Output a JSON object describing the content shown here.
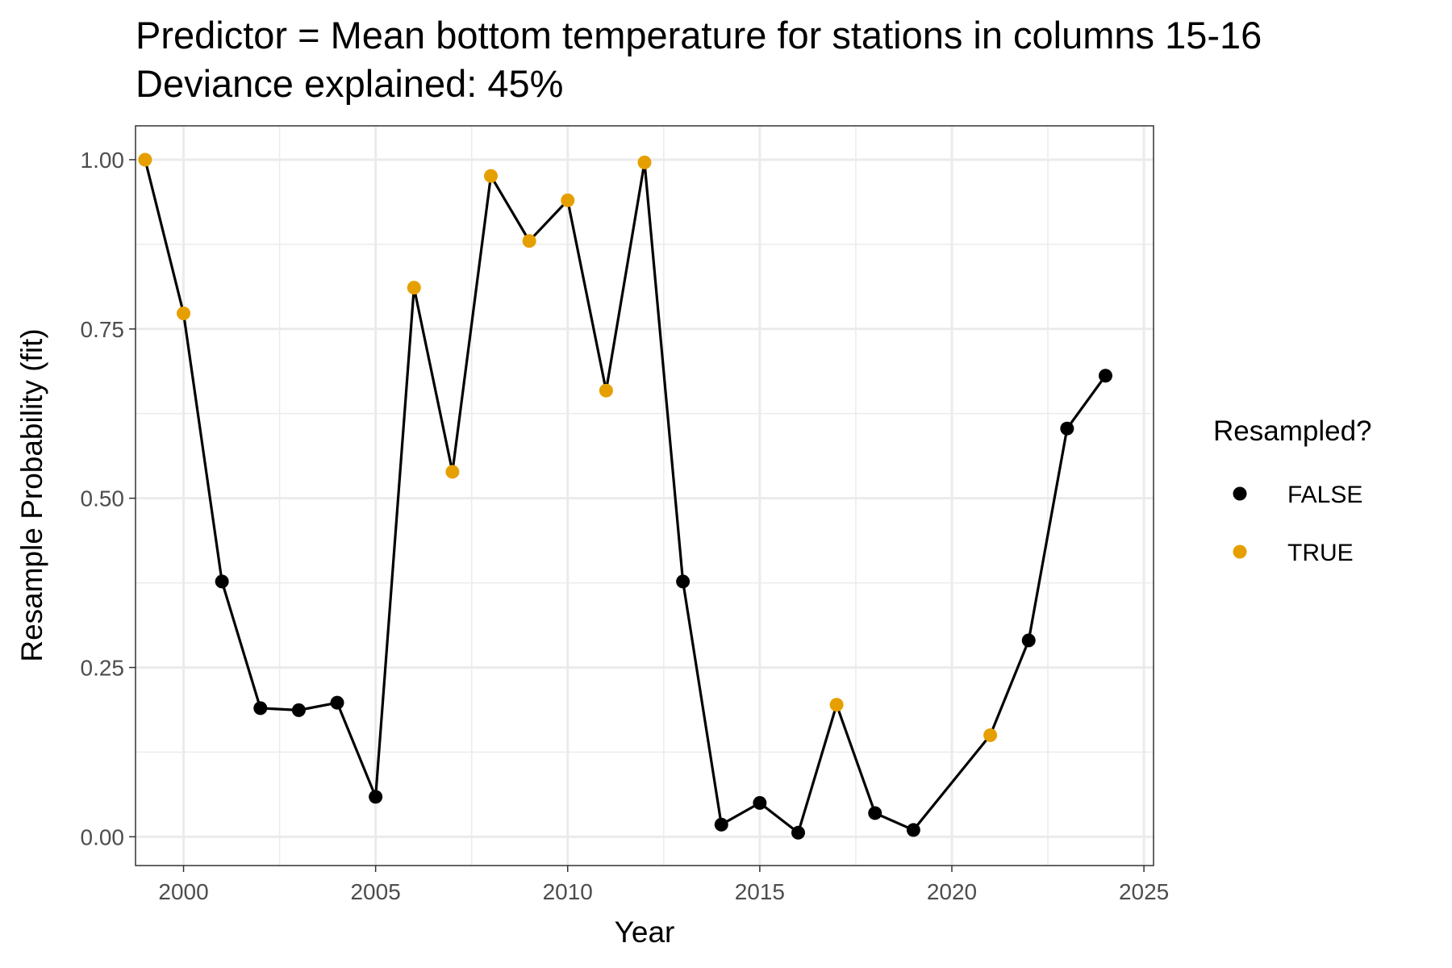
{
  "chart_data": {
    "type": "line",
    "title_line1": "Predictor = Mean bottom temperature for stations in columns 15-16",
    "title_line2": "Deviance explained: 45%",
    "xlabel": "Year",
    "ylabel": "Resample Probability (fit)",
    "xlim": [
      1998.75,
      2025.25
    ],
    "ylim": [
      -0.0425,
      1.05
    ],
    "x_ticks": [
      2000,
      2005,
      2010,
      2015,
      2020,
      2025
    ],
    "x_tick_labels": [
      "2000",
      "2005",
      "2010",
      "2015",
      "2020",
      "2025"
    ],
    "y_ticks": [
      0,
      0.25,
      0.5,
      0.75,
      1.0
    ],
    "y_tick_labels": [
      "0.00",
      "0.25",
      "0.50",
      "0.75",
      "1.00"
    ],
    "grid": true,
    "legend": {
      "title": "Resampled?",
      "position": "right",
      "entries": [
        {
          "label": "FALSE",
          "color": "#000000"
        },
        {
          "label": "TRUE",
          "color": "#E69F00"
        }
      ]
    },
    "line_color": "#000000",
    "series": [
      {
        "points": [
          {
            "x": 1999,
            "y": 1.0,
            "resampled": true
          },
          {
            "x": 2000,
            "y": 0.773,
            "resampled": true
          },
          {
            "x": 2001,
            "y": 0.377,
            "resampled": false
          },
          {
            "x": 2002,
            "y": 0.19,
            "resampled": false
          },
          {
            "x": 2003,
            "y": 0.187,
            "resampled": false
          },
          {
            "x": 2004,
            "y": 0.198,
            "resampled": false
          },
          {
            "x": 2005,
            "y": 0.059,
            "resampled": false
          },
          {
            "x": 2006,
            "y": 0.811,
            "resampled": true
          },
          {
            "x": 2007,
            "y": 0.539,
            "resampled": true
          },
          {
            "x": 2008,
            "y": 0.976,
            "resampled": true
          },
          {
            "x": 2009,
            "y": 0.88,
            "resampled": true
          },
          {
            "x": 2010,
            "y": 0.94,
            "resampled": true
          },
          {
            "x": 2011,
            "y": 0.659,
            "resampled": true
          },
          {
            "x": 2012,
            "y": 0.996,
            "resampled": true
          },
          {
            "x": 2013,
            "y": 0.377,
            "resampled": false
          },
          {
            "x": 2014,
            "y": 0.018,
            "resampled": false
          },
          {
            "x": 2015,
            "y": 0.05,
            "resampled": false
          },
          {
            "x": 2016,
            "y": 0.006,
            "resampled": false
          },
          {
            "x": 2017,
            "y": 0.195,
            "resampled": true
          },
          {
            "x": 2018,
            "y": 0.035,
            "resampled": false
          },
          {
            "x": 2019,
            "y": 0.01,
            "resampled": false
          },
          {
            "x": 2021,
            "y": 0.15,
            "resampled": true
          },
          {
            "x": 2022,
            "y": 0.29,
            "resampled": false
          },
          {
            "x": 2023,
            "y": 0.603,
            "resampled": false
          },
          {
            "x": 2024,
            "y": 0.681,
            "resampled": false
          }
        ]
      }
    ]
  }
}
